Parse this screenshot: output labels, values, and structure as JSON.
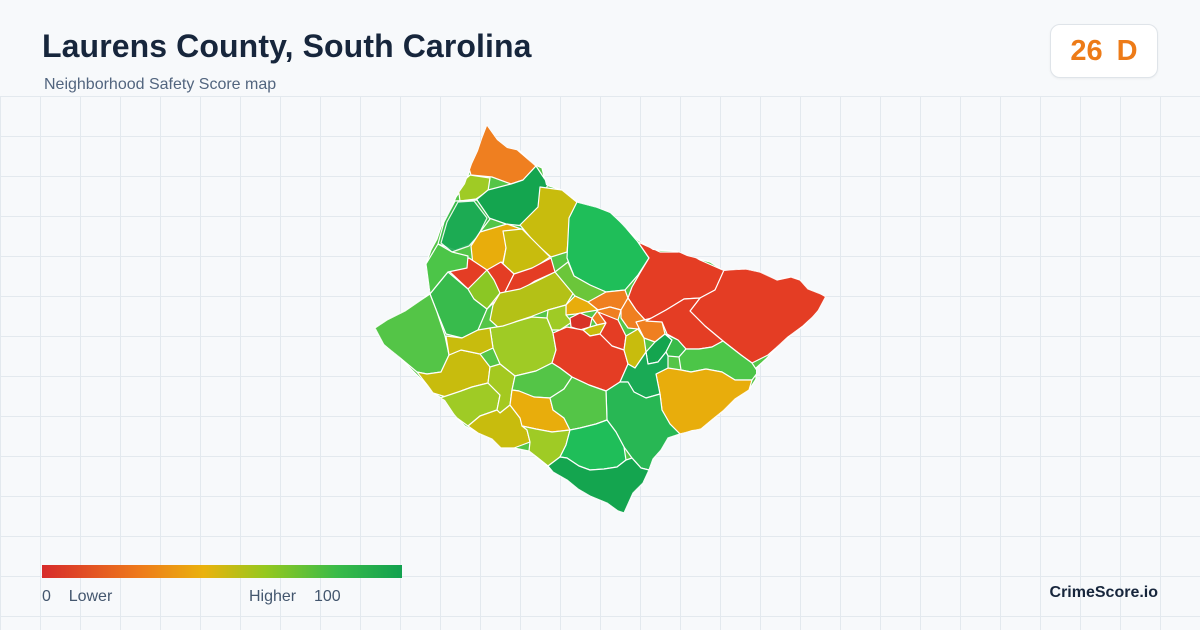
{
  "header": {
    "title": "Laurens County, South Carolina",
    "subtitle": "Neighborhood Safety Score map"
  },
  "score": {
    "value": "26",
    "grade": "D",
    "color": "#ed7b18"
  },
  "map": {
    "region": "Laurens County, South Carolina",
    "palette": {
      "red": "#e43d24",
      "red_dark": "#d83328",
      "orange": "#ef7f20",
      "amber": "#e8ad0c",
      "olive": "#c8bc0d",
      "yellow_green": "#9fcb25",
      "green": "#54c547",
      "bright_green": "#1fbe59",
      "deep_green": "#14a54f",
      "boundary": "#ffffff"
    }
  },
  "legend": {
    "min_value": "0",
    "min_label": "Lower",
    "max_label": "Higher",
    "max_value": "100",
    "colors": [
      "#d72b2b",
      "#ee7a1b",
      "#eab20d",
      "#95c81e",
      "#39bb49",
      "#12a14f"
    ]
  },
  "footer": {
    "brand": "CrimeScore.io"
  }
}
